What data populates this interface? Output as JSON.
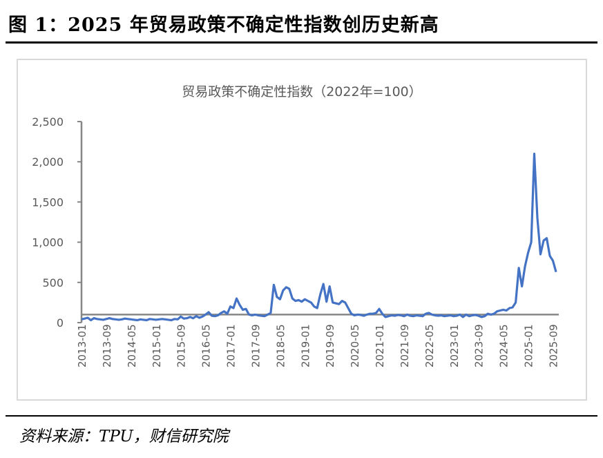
{
  "title": "图 1：2025 年贸易政策不确定性指数创历史新高",
  "source": "资料来源：TPU，财信研究院",
  "chart_data": {
    "type": "line",
    "title": "贸易政策不确定性指数（2022年=100）",
    "xlabel": "",
    "ylabel": "",
    "ylim": [
      0,
      2500
    ],
    "yticks": [
      "0",
      "500",
      "1,000",
      "1,500",
      "2,000",
      "2,500"
    ],
    "ytick_values": [
      0,
      500,
      1000,
      1500,
      2000,
      2500
    ],
    "x_axis_crosses_at": 100,
    "grid": false,
    "legend": "none",
    "color": "#4472C4",
    "start_month": "2013-01",
    "xtick_labels": [
      "2013-01",
      "2013-09",
      "2014-05",
      "2015-01",
      "2015-09",
      "2016-05",
      "2017-01",
      "2017-09",
      "2018-05",
      "2019-01",
      "2019-09",
      "2020-05",
      "2021-01",
      "2021-09",
      "2022-05",
      "2023-01",
      "2023-09",
      "2024-05",
      "2025-01",
      "2025-09"
    ],
    "values": [
      40,
      50,
      60,
      30,
      55,
      45,
      40,
      35,
      45,
      55,
      45,
      40,
      35,
      40,
      50,
      45,
      40,
      35,
      30,
      40,
      35,
      30,
      45,
      40,
      35,
      40,
      45,
      40,
      35,
      30,
      45,
      40,
      75,
      50,
      55,
      70,
      55,
      80,
      60,
      75,
      100,
      130,
      85,
      80,
      90,
      120,
      140,
      110,
      200,
      180,
      300,
      220,
      160,
      170,
      100,
      90,
      100,
      90,
      85,
      80,
      100,
      120,
      470,
      320,
      290,
      400,
      440,
      420,
      300,
      270,
      280,
      260,
      290,
      270,
      250,
      200,
      180,
      350,
      480,
      260,
      450,
      250,
      240,
      230,
      270,
      250,
      180,
      110,
      90,
      100,
      95,
      85,
      100,
      110,
      110,
      120,
      170,
      110,
      70,
      80,
      90,
      85,
      95,
      90,
      80,
      100,
      85,
      80,
      90,
      85,
      80,
      110,
      120,
      100,
      90,
      85,
      90,
      80,
      85,
      90,
      80,
      85,
      100,
      70,
      100,
      80,
      90,
      95,
      85,
      70,
      80,
      110,
      100,
      110,
      140,
      150,
      160,
      150,
      180,
      190,
      250,
      680,
      450,
      700,
      870,
      1000,
      2100,
      1300,
      850,
      1020,
      1050,
      830,
      770,
      630
    ]
  }
}
